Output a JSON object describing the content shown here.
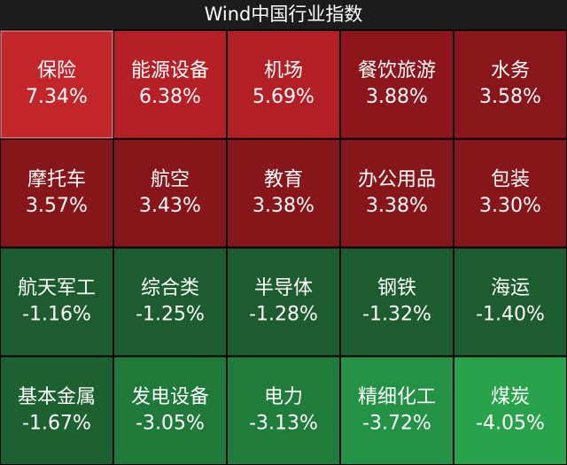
{
  "chart_data": {
    "type": "heatmap",
    "title": "Wind中国行业指数",
    "categories": [
      "保险",
      "能源设备",
      "机场",
      "餐饮旅游",
      "水务",
      "摩托车",
      "航空",
      "教育",
      "办公用品",
      "包装",
      "航天军工",
      "综合类",
      "半导体",
      "钢铁",
      "海运",
      "基本金属",
      "发电设备",
      "电力",
      "精细化工",
      "煤炭"
    ],
    "values": [
      7.34,
      6.38,
      5.69,
      3.88,
      3.58,
      3.57,
      3.43,
      3.38,
      3.38,
      3.3,
      -1.16,
      -1.25,
      -1.28,
      -1.32,
      -1.4,
      -1.67,
      -3.05,
      -3.13,
      -3.72,
      -4.05
    ],
    "value_labels": [
      "7.34%",
      "6.38%",
      "5.69%",
      "3.88%",
      "3.58%",
      "3.57%",
      "3.43%",
      "3.38%",
      "3.38%",
      "3.30%",
      "-1.16%",
      "-1.25%",
      "-1.28%",
      "-1.32%",
      "-1.40%",
      "-1.67%",
      "-3.05%",
      "-3.13%",
      "-3.72%",
      "-4.05%"
    ],
    "colors": [
      "#c2262b",
      "#b52026",
      "#b21f25",
      "#8c161b",
      "#88161a",
      "#86161a",
      "#86161a",
      "#86161a",
      "#86161a",
      "#86161a",
      "#1c5c2e",
      "#1c5c2e",
      "#1c5c2e",
      "#1c5c2e",
      "#1c5c2e",
      "#1d6131",
      "#1f7a3a",
      "#207c3b",
      "#239245",
      "#28a24b"
    ]
  }
}
